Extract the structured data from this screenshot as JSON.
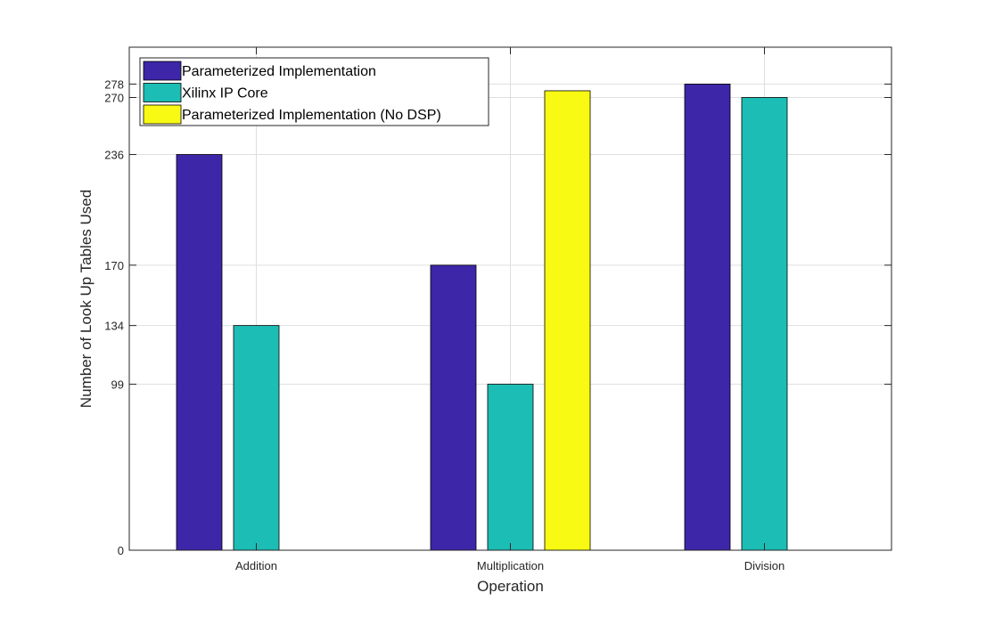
{
  "chart_data": {
    "type": "bar",
    "title": "",
    "xlabel": "Operation",
    "ylabel": "Number of Look Up Tables Used",
    "categories": [
      "Addition",
      "Multiplication",
      "Division"
    ],
    "series": [
      {
        "name": "Parameterized Implementation",
        "color": "#3e26a8",
        "values": [
          236,
          170,
          278
        ]
      },
      {
        "name": "Xilinx IP Core",
        "color": "#1cbdb4",
        "values": [
          134,
          99,
          270
        ]
      },
      {
        "name": "Parameterized Implementation (No DSP)",
        "color": "#f9fa14",
        "values": [
          null,
          274,
          null
        ]
      }
    ],
    "ylim": [
      0,
      300
    ],
    "yticks": [
      0,
      99,
      134,
      170,
      236,
      270,
      278
    ],
    "ytick_labels": [
      "0",
      "99",
      "134",
      "170",
      "236",
      "270",
      "278"
    ],
    "grid": true,
    "legend_position": "top-left"
  }
}
